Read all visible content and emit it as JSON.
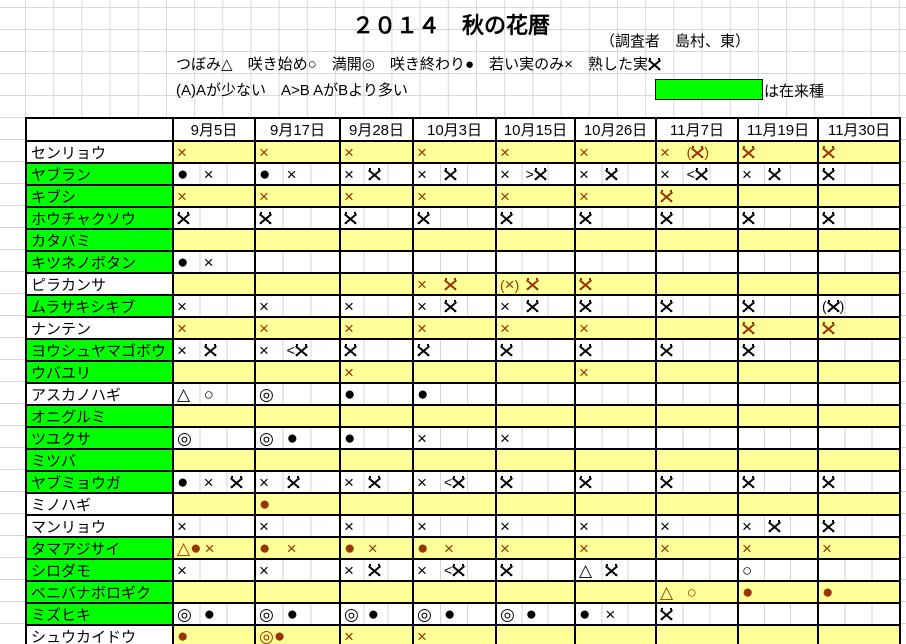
{
  "page": {
    "title": "２０１４　秋の花暦",
    "surveyor": "（調査者　島村、東）",
    "legend_line1": "つぼみ△　咲き始め○　満開◎　咲き終わり●　若い実のみ×　熟した実※",
    "legend_line2": "(A)Aが少ない　A>B AがBより多い",
    "native_note": "は在来種"
  },
  "colors": {
    "native_green": "#00ff00",
    "row_yellow": "#ffff99",
    "symbol_brown": "#993300",
    "symbol_black": "#000000",
    "grid_line": "#d8d8d8"
  },
  "chart_data": {
    "type": "table",
    "columns": [
      "9月5日",
      "9月17日",
      "9月28日",
      "10月3日",
      "10月15日",
      "10月26日",
      "11月7日",
      "11月19日",
      "11月30日"
    ],
    "rows": [
      {
        "name": "センリョウ",
        "native": false,
        "shaded": true,
        "cells": [
          [
            "×"
          ],
          [
            "×"
          ],
          [
            "×"
          ],
          [
            "×"
          ],
          [
            "×"
          ],
          [
            "×"
          ],
          [
            "×",
            "(※)"
          ],
          [
            "※"
          ],
          [
            "※"
          ]
        ]
      },
      {
        "name": "ヤブラン",
        "native": true,
        "shaded": false,
        "cells": [
          [
            "●",
            "×"
          ],
          [
            "●",
            "×"
          ],
          [
            "×",
            "※"
          ],
          [
            "×",
            "※"
          ],
          [
            "×",
            ">※"
          ],
          [
            "×",
            "※"
          ],
          [
            "×",
            "<※"
          ],
          [
            "×",
            "※"
          ],
          [
            "※"
          ]
        ]
      },
      {
        "name": "キブシ",
        "native": true,
        "shaded": true,
        "cells": [
          [
            "×"
          ],
          [
            "×"
          ],
          [
            "×"
          ],
          [
            "×"
          ],
          [
            "×"
          ],
          [
            "×"
          ],
          [
            "※"
          ],
          [],
          []
        ]
      },
      {
        "name": "ホウチャクソウ",
        "native": true,
        "shaded": false,
        "cells": [
          [
            "※"
          ],
          [
            "※"
          ],
          [
            "※"
          ],
          [
            "※"
          ],
          [
            "※"
          ],
          [
            "※"
          ],
          [
            "※"
          ],
          [
            "※"
          ],
          [
            "※"
          ]
        ]
      },
      {
        "name": "カタバミ",
        "native": true,
        "shaded": true,
        "cells": [
          [],
          [],
          [],
          [],
          [],
          [],
          [],
          [],
          []
        ]
      },
      {
        "name": "キツネノボタン",
        "native": true,
        "shaded": false,
        "cells": [
          [
            "●",
            "×"
          ],
          [],
          [],
          [],
          [],
          [],
          [],
          [],
          []
        ]
      },
      {
        "name": "ピラカンサ",
        "native": false,
        "shaded": true,
        "cells": [
          [],
          [],
          [],
          [
            "×",
            "※"
          ],
          [
            "(×)",
            "※"
          ],
          [
            "※"
          ],
          [],
          [],
          []
        ]
      },
      {
        "name": "ムラサキシキブ",
        "native": true,
        "shaded": false,
        "cells": [
          [
            "×"
          ],
          [
            "×"
          ],
          [
            "×"
          ],
          [
            "×",
            "※"
          ],
          [
            "×",
            "※"
          ],
          [
            "※"
          ],
          [
            "※"
          ],
          [
            "※"
          ],
          [
            "(※)"
          ]
        ]
      },
      {
        "name": "ナンテン",
        "native": false,
        "shaded": true,
        "cells": [
          [
            "×"
          ],
          [
            "×"
          ],
          [
            "×"
          ],
          [
            "×"
          ],
          [
            "×"
          ],
          [
            "×"
          ],
          [],
          [
            "※"
          ],
          [
            "※"
          ]
        ]
      },
      {
        "name": "ヨウシュヤマゴボウ",
        "native": true,
        "shaded": false,
        "cells": [
          [
            "×",
            "※"
          ],
          [
            "×",
            "<※"
          ],
          [
            "※"
          ],
          [
            "※"
          ],
          [
            "※"
          ],
          [
            "※"
          ],
          [
            "※"
          ],
          [
            "※"
          ],
          []
        ]
      },
      {
        "name": "ウバユリ",
        "native": true,
        "shaded": true,
        "cells": [
          [],
          [],
          [
            "×"
          ],
          [],
          [],
          [
            "×"
          ],
          [],
          [],
          []
        ]
      },
      {
        "name": "アスカノハギ",
        "native": false,
        "shaded": false,
        "cells": [
          [
            "△",
            "○"
          ],
          [
            "◎"
          ],
          [
            "●"
          ],
          [
            "●"
          ],
          [],
          [],
          [],
          [],
          []
        ]
      },
      {
        "name": "オニグルミ",
        "native": true,
        "shaded": true,
        "cells": [
          [],
          [],
          [],
          [],
          [],
          [],
          [],
          [],
          []
        ]
      },
      {
        "name": "ツユクサ",
        "native": true,
        "shaded": false,
        "cells": [
          [
            "◎"
          ],
          [
            "◎",
            "●"
          ],
          [
            "●"
          ],
          [
            "×"
          ],
          [
            "×"
          ],
          [],
          [],
          [],
          []
        ]
      },
      {
        "name": "ミツバ",
        "native": true,
        "shaded": true,
        "cells": [
          [],
          [],
          [],
          [],
          [],
          [],
          [],
          [],
          []
        ]
      },
      {
        "name": "ヤブミョウガ",
        "native": true,
        "shaded": false,
        "cells": [
          [
            "●",
            "×",
            "※"
          ],
          [
            "×",
            "※"
          ],
          [
            "×",
            "※"
          ],
          [
            "×",
            "<※"
          ],
          [
            "※"
          ],
          [
            "※"
          ],
          [
            "※"
          ],
          [
            "※"
          ],
          [
            "※"
          ]
        ]
      },
      {
        "name": "ミノハギ",
        "native": false,
        "shaded": true,
        "cells": [
          [],
          [
            "●"
          ],
          [],
          [],
          [],
          [],
          [],
          [],
          []
        ]
      },
      {
        "name": "マンリョウ",
        "native": false,
        "shaded": false,
        "cells": [
          [
            "×"
          ],
          [
            "×"
          ],
          [
            "×"
          ],
          [
            "×"
          ],
          [
            "×"
          ],
          [
            "×"
          ],
          [
            "×"
          ],
          [
            "×",
            "※"
          ],
          [
            "※"
          ]
        ]
      },
      {
        "name": "タマアジサイ",
        "native": true,
        "shaded": true,
        "cells": [
          [
            "△●",
            "×"
          ],
          [
            "●",
            "×"
          ],
          [
            "●",
            "×"
          ],
          [
            "●",
            "×"
          ],
          [
            "×"
          ],
          [
            "×"
          ],
          [
            "×"
          ],
          [
            "×"
          ],
          [
            "×"
          ]
        ]
      },
      {
        "name": "シロダモ",
        "native": true,
        "shaded": false,
        "cells": [
          [
            "×"
          ],
          [
            "×"
          ],
          [
            "×",
            "※"
          ],
          [
            "×",
            "<※"
          ],
          [
            "※"
          ],
          [
            "△",
            "※"
          ],
          [],
          [
            "○"
          ],
          []
        ]
      },
      {
        "name": "ベニバナボロギク",
        "native": true,
        "shaded": true,
        "cells": [
          [],
          [],
          [],
          [],
          [],
          [],
          [
            "△",
            "○"
          ],
          [
            "●"
          ],
          [
            "●"
          ]
        ]
      },
      {
        "name": "ミズヒキ",
        "native": true,
        "shaded": false,
        "cells": [
          [
            "◎",
            "●"
          ],
          [
            "◎",
            "●"
          ],
          [
            "◎",
            "●"
          ],
          [
            "◎",
            "●"
          ],
          [
            "◎",
            "●"
          ],
          [
            "●",
            "×"
          ],
          [
            "※"
          ],
          [],
          []
        ]
      },
      {
        "name": "シュウカイドウ",
        "native": false,
        "shaded": true,
        "cells": [
          [
            "●"
          ],
          [
            "◎●"
          ],
          [
            "×"
          ],
          [
            "×"
          ],
          [],
          [],
          [],
          [],
          []
        ]
      }
    ]
  }
}
